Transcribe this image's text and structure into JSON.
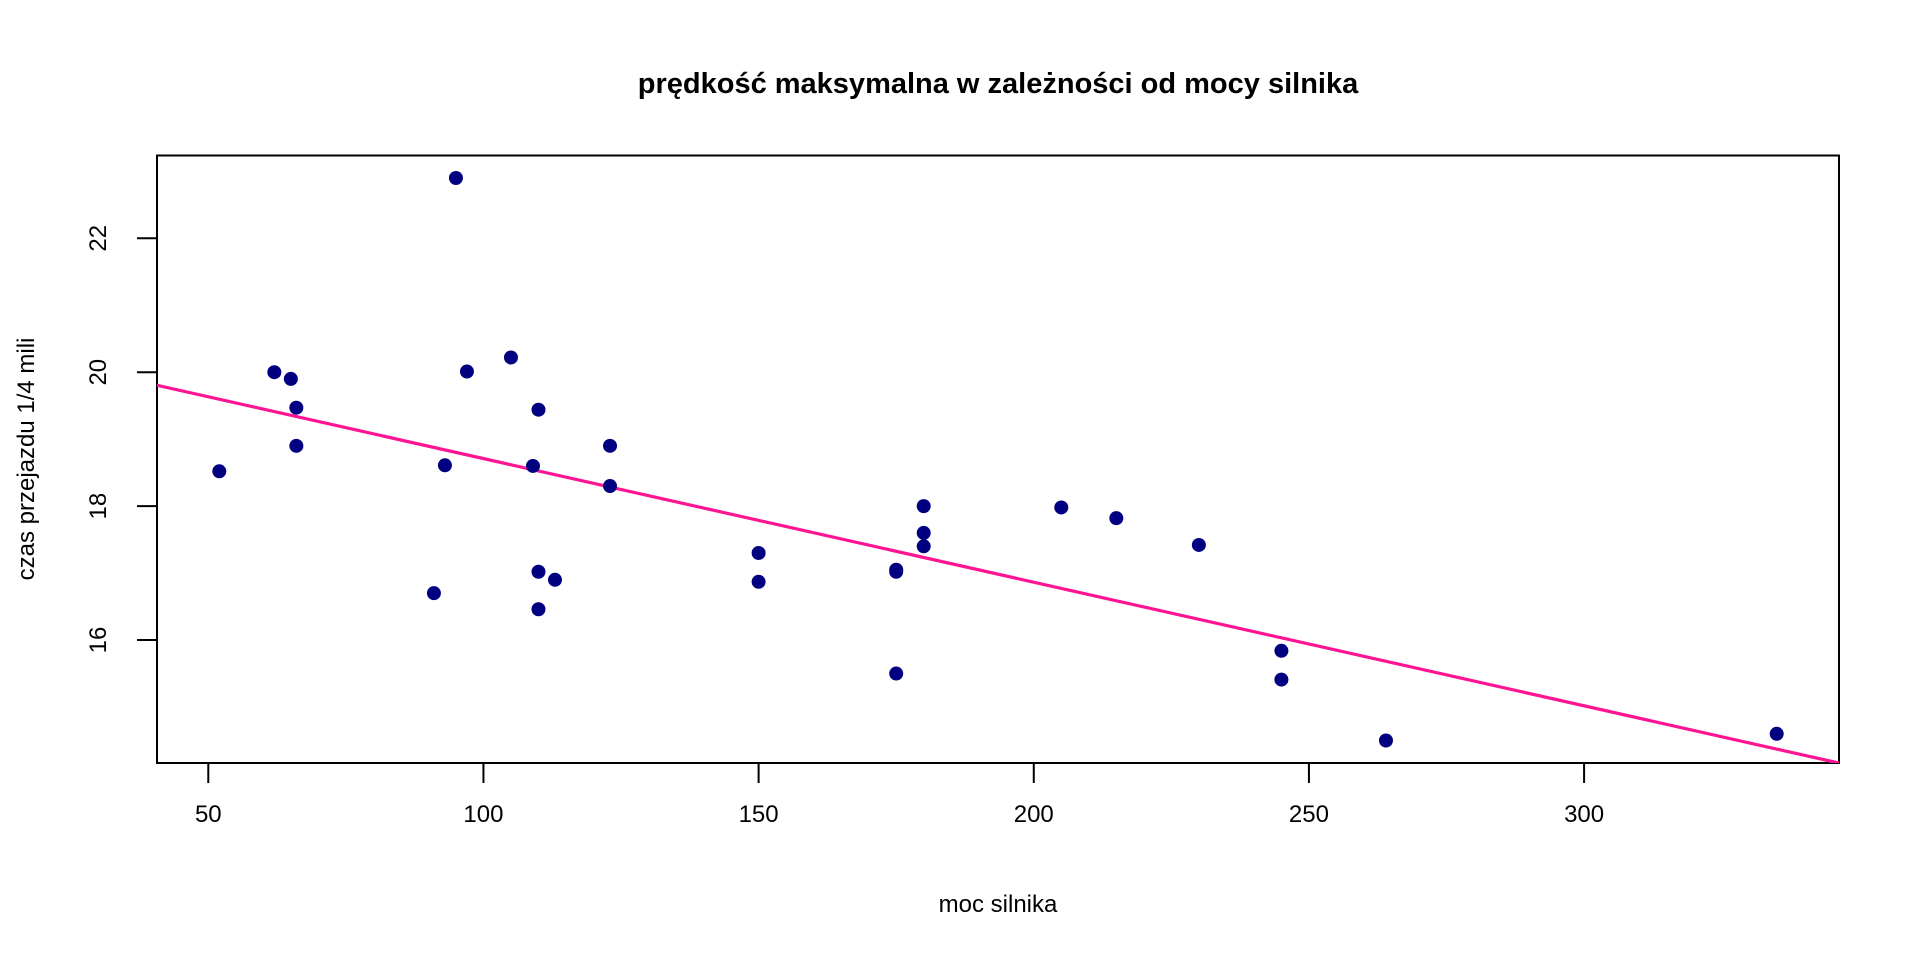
{
  "chart_data": {
    "type": "scatter",
    "title": "prędkość maksymalna w zależności od mocy silnika",
    "xlabel": "moc silnika",
    "ylabel": "czas przejazdu 1/4 mili",
    "xlim": [
      40.68,
      346.32
    ],
    "ylim": [
      14.164,
      23.236
    ],
    "xticks": [
      50,
      100,
      150,
      200,
      250,
      300
    ],
    "yticks": [
      16,
      18,
      20,
      22
    ],
    "grid": false,
    "point_color": "#000080",
    "line_color": "#FF1493",
    "regression_line": {
      "intercept": 20.556,
      "slope": -0.01846
    },
    "points": [
      [
        110,
        16.46
      ],
      [
        110,
        17.02
      ],
      [
        93,
        18.61
      ],
      [
        110,
        19.44
      ],
      [
        175,
        17.02
      ],
      [
        105,
        20.22
      ],
      [
        245,
        15.84
      ],
      [
        62,
        20.0
      ],
      [
        95,
        22.9
      ],
      [
        123,
        18.3
      ],
      [
        123,
        18.9
      ],
      [
        180,
        17.4
      ],
      [
        180,
        17.6
      ],
      [
        180,
        18.0
      ],
      [
        205,
        17.98
      ],
      [
        215,
        17.82
      ],
      [
        230,
        17.42
      ],
      [
        66,
        19.47
      ],
      [
        52,
        18.52
      ],
      [
        65,
        19.9
      ],
      [
        97,
        20.01
      ],
      [
        150,
        16.87
      ],
      [
        150,
        17.3
      ],
      [
        245,
        15.41
      ],
      [
        175,
        17.05
      ],
      [
        66,
        18.9
      ],
      [
        91,
        16.7
      ],
      [
        113,
        16.9
      ],
      [
        264,
        14.5
      ],
      [
        175,
        15.5
      ],
      [
        335,
        14.6
      ],
      [
        109,
        18.6
      ]
    ]
  }
}
